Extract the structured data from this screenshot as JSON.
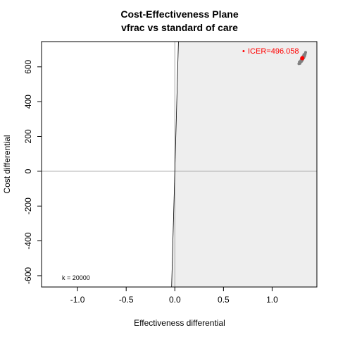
{
  "chart_data": {
    "type": "scatter",
    "title": "Cost-Effectiveness Plane",
    "subtitle": "vfrac vs standard of care",
    "xlabel": "Effectiveness differential",
    "ylabel": "Cost differential",
    "xlim": [
      -1.37,
      1.46
    ],
    "ylim": [
      -665,
      745
    ],
    "xticks": [
      -1.0,
      -0.5,
      0.0,
      0.5,
      1.0
    ],
    "xtick_labels": [
      "-1.0",
      "-0.5",
      "0.0",
      "0.5",
      "1.0"
    ],
    "yticks": [
      -600,
      -400,
      -200,
      0,
      200,
      400,
      600
    ],
    "ytick_labels": [
      "-600",
      "-400",
      "-200",
      "0",
      "200",
      "400",
      "600"
    ],
    "wtp_k": 20000,
    "wtp_label": "k = 20000",
    "icer_label": "ICER=496.058",
    "icer_point": {
      "x": 1.31,
      "y": 650
    },
    "simulations": [
      {
        "x": 1.275,
        "y": 618
      },
      {
        "x": 1.285,
        "y": 625
      },
      {
        "x": 1.29,
        "y": 631
      },
      {
        "x": 1.3,
        "y": 638
      },
      {
        "x": 1.305,
        "y": 642
      },
      {
        "x": 1.31,
        "y": 648
      },
      {
        "x": 1.315,
        "y": 652
      },
      {
        "x": 1.32,
        "y": 657
      },
      {
        "x": 1.325,
        "y": 661
      },
      {
        "x": 1.33,
        "y": 666
      },
      {
        "x": 1.335,
        "y": 671
      },
      {
        "x": 1.34,
        "y": 676
      },
      {
        "x": 1.28,
        "y": 628
      },
      {
        "x": 1.295,
        "y": 636
      },
      {
        "x": 1.3,
        "y": 644
      },
      {
        "x": 1.312,
        "y": 640
      },
      {
        "x": 1.318,
        "y": 660
      },
      {
        "x": 1.322,
        "y": 650
      },
      {
        "x": 1.328,
        "y": 655
      },
      {
        "x": 1.336,
        "y": 664
      },
      {
        "x": 1.344,
        "y": 683
      },
      {
        "x": 1.287,
        "y": 620
      },
      {
        "x": 1.3,
        "y": 630
      },
      {
        "x": 1.308,
        "y": 636
      },
      {
        "x": 1.316,
        "y": 645
      },
      {
        "x": 1.326,
        "y": 670
      },
      {
        "x": 1.339,
        "y": 672
      }
    ],
    "colors": {
      "acceptability_region": "#eeeeee",
      "simulation_points": "#808080",
      "icer": "#ff0000",
      "axis_lines": "#a6a6a6",
      "wtp_line": "#000000"
    },
    "grid": false,
    "legend": "none"
  }
}
